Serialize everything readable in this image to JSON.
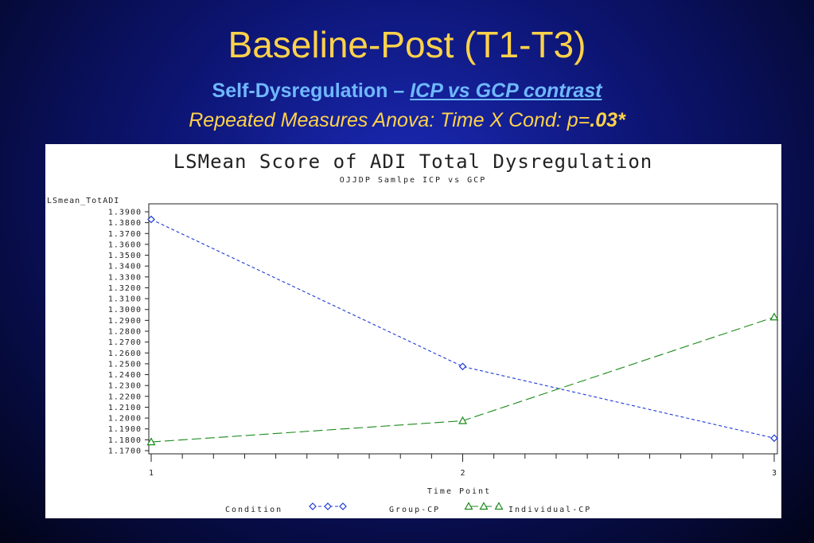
{
  "slide": {
    "title": "Baseline-Post (T1-T3)",
    "subtitle_main": "Self-Dysregulation – ",
    "subtitle_contrast": "ICP vs GCP contrast",
    "subtitle2_main": "Repeated Measures Anova: Time X Cond: p=",
    "subtitle2_p": ".03*"
  },
  "colors": {
    "title": "#ffd24a",
    "subtitle": "#6fb8ff",
    "group_cp": "#1f3bd6",
    "individual_cp": "#1a8a1a"
  },
  "chart_data": {
    "type": "line",
    "title": "LSMean Score of ADI Total Dysregulation",
    "subtitle": "OJJDP Samlpe ICP vs GCP",
    "ylabel": "LSmean_TotADI",
    "xlabel": "Time Point",
    "x": [
      1,
      2,
      3
    ],
    "x_tick_labels": [
      "1",
      "2",
      "3"
    ],
    "ylim": [
      1.17,
      1.39
    ],
    "y_ticks": [
      "1.3900",
      "1.3800",
      "1.3700",
      "1.3600",
      "1.3500",
      "1.3400",
      "1.3300",
      "1.3200",
      "1.3100",
      "1.3000",
      "1.2900",
      "1.2800",
      "1.2700",
      "1.2600",
      "1.2500",
      "1.2400",
      "1.2300",
      "1.2200",
      "1.2100",
      "1.2000",
      "1.1900",
      "1.1800",
      "1.1700"
    ],
    "legend_title": "Condition",
    "legend_position": "bottom",
    "series": [
      {
        "name": "Group-CP",
        "marker": "diamond",
        "values": [
          1.383,
          1.2475,
          1.1815
        ]
      },
      {
        "name": "Individual-CP",
        "marker": "triangle",
        "values": [
          1.178,
          1.1975,
          1.293
        ]
      }
    ]
  }
}
